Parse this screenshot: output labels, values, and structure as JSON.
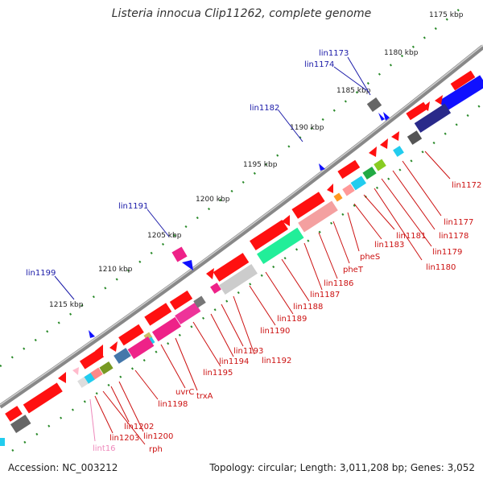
{
  "title": "Listeria innocua Clip11262, complete genome",
  "footer": {
    "accession": "Accession: NC_003212",
    "topology": "Topology: circular; Length: 3,011,208 bp; Genes: 3,052"
  },
  "colors": {
    "backbone": "#777777",
    "tick": "#2a8a2a",
    "top_label": "#1a1aa8",
    "bottom_label": "#cc1111",
    "pink_label": "#ee88bb",
    "gene_red": "#ff1010",
    "gene_gray": "#666666",
    "gene_blue": "#1010ff"
  },
  "kbp_labels": [
    "1175 kbp",
    "1180 kbp",
    "1185 kbp",
    "1190 kbp",
    "1195 kbp",
    "1200 kbp",
    "1205 kbp",
    "1210 kbp",
    "1215 kbp"
  ],
  "top_genes": [
    "lin1173",
    "lin1174",
    "lin1182",
    "lin1191",
    "lin1199"
  ],
  "bottom_genes": [
    "lin1172",
    "lin1177",
    "lin1178",
    "lin1179",
    "lin1180",
    "lin1181",
    "lin1183",
    "pheS",
    "pheT",
    "lin1186",
    "lin1187",
    "lin1188",
    "lin1189",
    "lin1190",
    "lin1192",
    "lin1193",
    "lin1194",
    "lin1195",
    "trxA",
    "uvrC",
    "lin1198",
    "lin1200",
    "lin1202",
    "rph",
    "lin1203",
    "lint16"
  ]
}
